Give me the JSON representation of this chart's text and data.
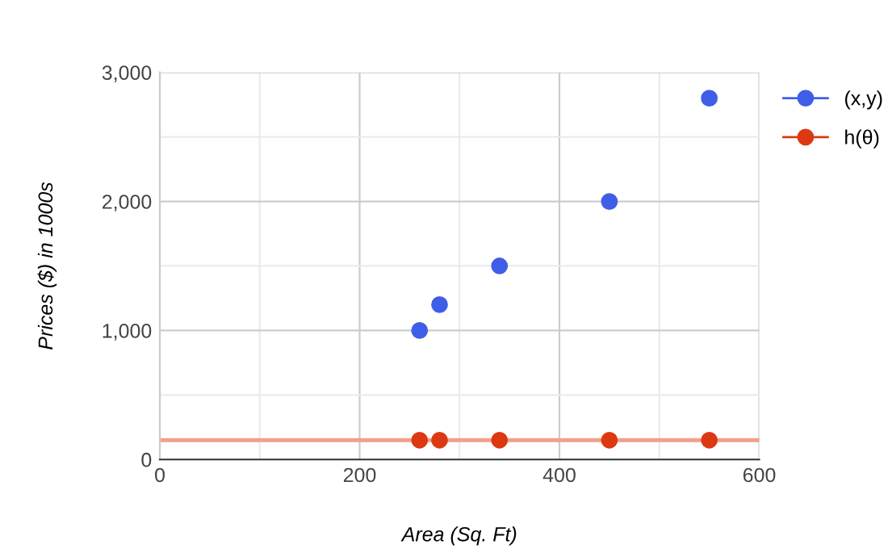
{
  "chart_data": {
    "type": "scatter",
    "xlabel": "Area (Sq. Ft)",
    "ylabel": "Prices ($) in 1000s",
    "series": [
      {
        "name": "(x,y)",
        "color": "#3f5ee8",
        "x": [
          260,
          280,
          340,
          450,
          550
        ],
        "values": [
          1000,
          1200,
          1500,
          2000,
          2800
        ]
      },
      {
        "name": "h(θ)",
        "color": "#dc3912",
        "x": [
          260,
          280,
          340,
          450,
          550
        ],
        "values": [
          150,
          150,
          150,
          150,
          150
        ]
      }
    ],
    "ref_lines": [
      {
        "axis": "y",
        "value": 150,
        "color": "#f0a08c"
      }
    ],
    "xlim": [
      0,
      600
    ],
    "xticks": [
      0,
      200,
      400,
      600
    ],
    "ylim": [
      0,
      3000
    ],
    "yticks": [
      0,
      {
        "value": 1000,
        "label": "1,000"
      },
      {
        "value": 2000,
        "label": "2,000"
      },
      {
        "value": 3000,
        "label": "3,000"
      }
    ],
    "grid": true,
    "legend": "right",
    "marker": "circle"
  }
}
